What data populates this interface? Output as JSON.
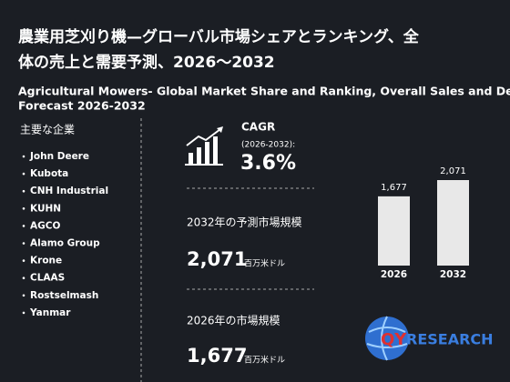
{
  "header": {
    "title_lines": [
      "農業用芝刈り機—グローバル市場シェアとランキング、全",
      "体の売上と需要予測、2026～2032"
    ],
    "subtitle_lines": [
      "Agricultural Mowers- Global Market Share and Ranking, Overall Sales and Demand",
      "Forecast 2026-2032"
    ]
  },
  "companies": {
    "heading": "主要な企業",
    "items": [
      "John Deere",
      "Kubota",
      "CNH Industrial",
      "KUHN",
      "AGCO",
      "Alamo Group",
      "Krone",
      "CLAAS",
      "Rostselmash",
      "Yanmar"
    ]
  },
  "stats": {
    "cagr_label": "CAGR",
    "cagr_period": "(2026-2032):",
    "cagr_value": "3.6%",
    "forecast_label": "2032年の予測市場規模",
    "forecast_value": "2,071",
    "forecast_unit": "百万米ドル",
    "current_label": "2026年の市場規模",
    "current_value": "1,677",
    "current_unit": "百万米ドル"
  },
  "chart_data": {
    "type": "bar",
    "categories": [
      "2026",
      "2032"
    ],
    "values": [
      1677,
      2071
    ],
    "value_labels": [
      "1,677",
      "2,071"
    ],
    "color": "#e8e8e8"
  },
  "logo": {
    "prefix": "QY",
    "suffix": "RESEARCH"
  }
}
